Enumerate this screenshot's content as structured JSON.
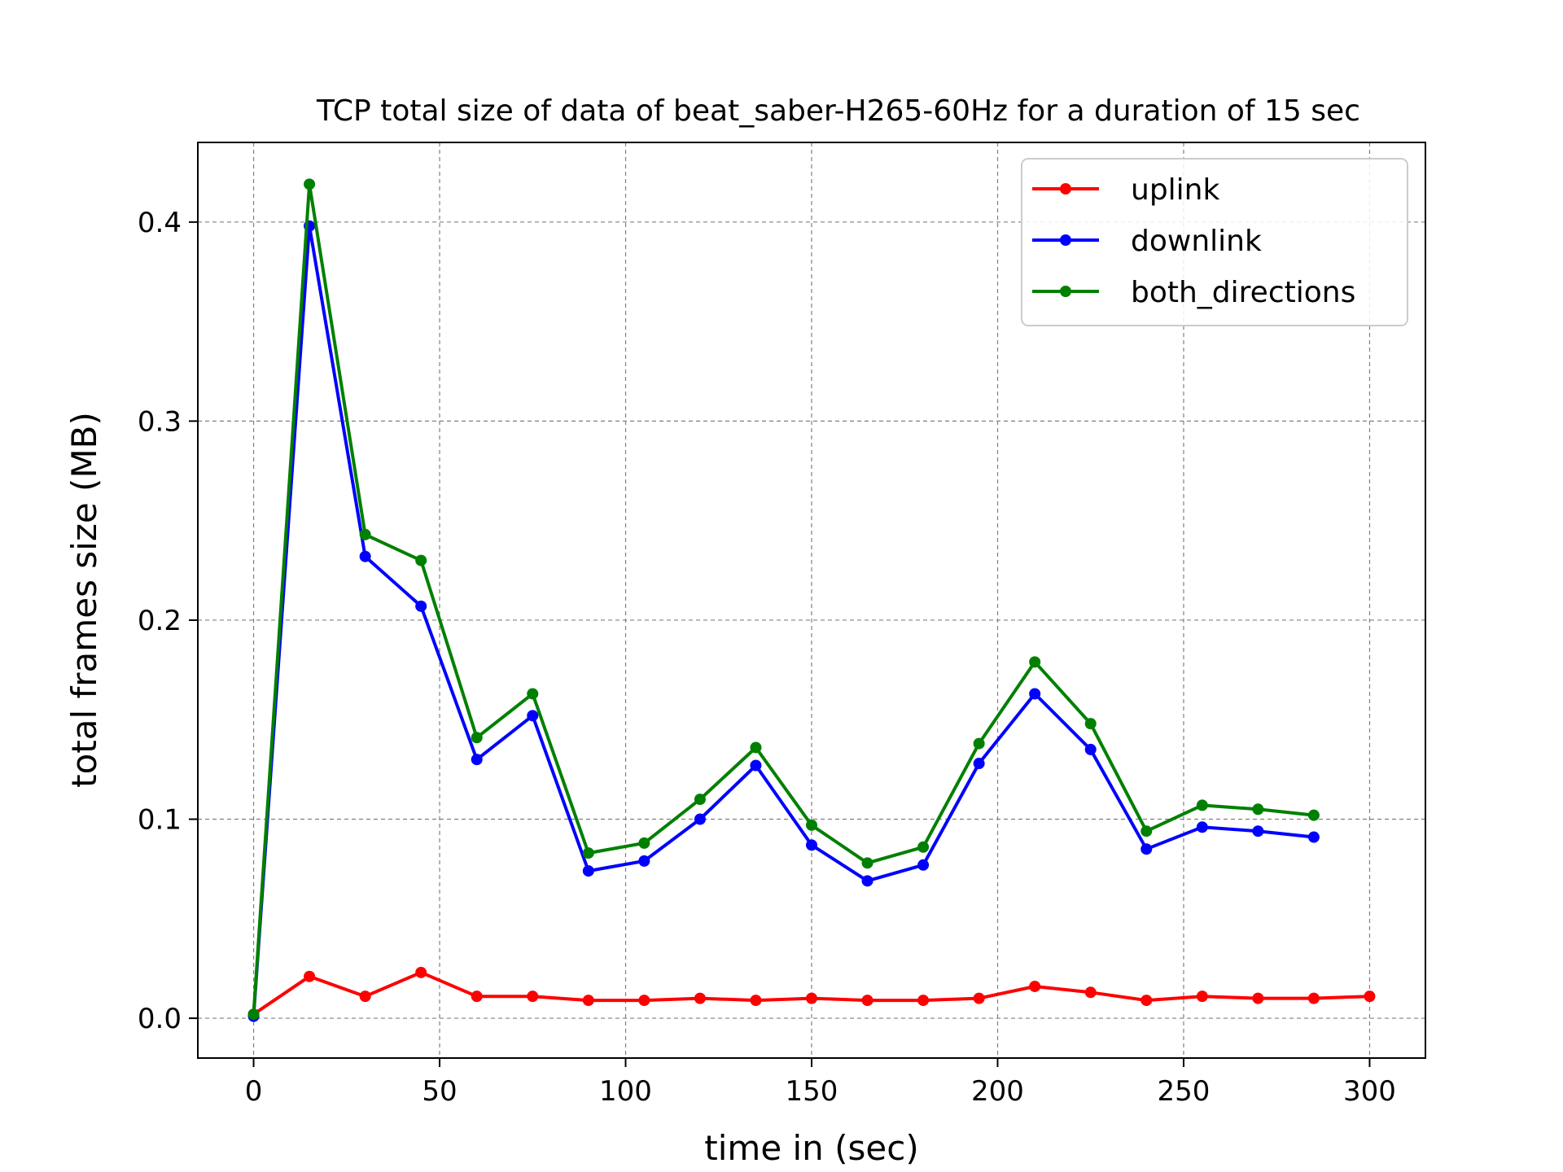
{
  "chart_data": {
    "type": "line",
    "title": "TCP total size of data of beat_saber-H265-60Hz for a duration of 15 sec",
    "xlabel": "time in (sec)",
    "ylabel": "total frames size (MB)",
    "xlim": [
      -15,
      315
    ],
    "ylim": [
      -0.02,
      0.44
    ],
    "xticks": [
      0,
      50,
      100,
      150,
      200,
      250,
      300
    ],
    "xtick_labels": [
      "0",
      "50",
      "100",
      "150",
      "200",
      "250",
      "300"
    ],
    "yticks": [
      0.0,
      0.1,
      0.2,
      0.3,
      0.4
    ],
    "ytick_labels": [
      "0.0",
      "0.1",
      "0.2",
      "0.3",
      "0.4"
    ],
    "grid": true,
    "legend_position": "top-right",
    "series": [
      {
        "name": "uplink",
        "color": "#ff0000",
        "x": [
          0,
          15,
          30,
          45,
          60,
          75,
          90,
          105,
          120,
          135,
          150,
          165,
          180,
          195,
          210,
          225,
          240,
          255,
          270,
          285,
          300
        ],
        "y": [
          0.002,
          0.021,
          0.011,
          0.023,
          0.011,
          0.011,
          0.009,
          0.009,
          0.01,
          0.009,
          0.01,
          0.009,
          0.009,
          0.01,
          0.016,
          0.013,
          0.009,
          0.011,
          0.01,
          0.01,
          0.011
        ]
      },
      {
        "name": "downlink",
        "color": "#0000ff",
        "x": [
          0,
          15,
          30,
          45,
          60,
          75,
          90,
          105,
          120,
          135,
          150,
          165,
          180,
          195,
          210,
          225,
          240,
          255,
          270,
          285
        ],
        "y": [
          0.001,
          0.398,
          0.232,
          0.207,
          0.13,
          0.152,
          0.074,
          0.079,
          0.1,
          0.127,
          0.087,
          0.069,
          0.077,
          0.128,
          0.163,
          0.135,
          0.085,
          0.096,
          0.094,
          0.091
        ]
      },
      {
        "name": "both_directions",
        "color": "#008000",
        "x": [
          0,
          15,
          30,
          45,
          60,
          75,
          90,
          105,
          120,
          135,
          150,
          165,
          180,
          195,
          210,
          225,
          240,
          255,
          270,
          285
        ],
        "y": [
          0.002,
          0.419,
          0.243,
          0.23,
          0.141,
          0.163,
          0.083,
          0.088,
          0.11,
          0.136,
          0.097,
          0.078,
          0.086,
          0.138,
          0.179,
          0.148,
          0.094,
          0.107,
          0.105,
          0.102
        ]
      }
    ]
  }
}
